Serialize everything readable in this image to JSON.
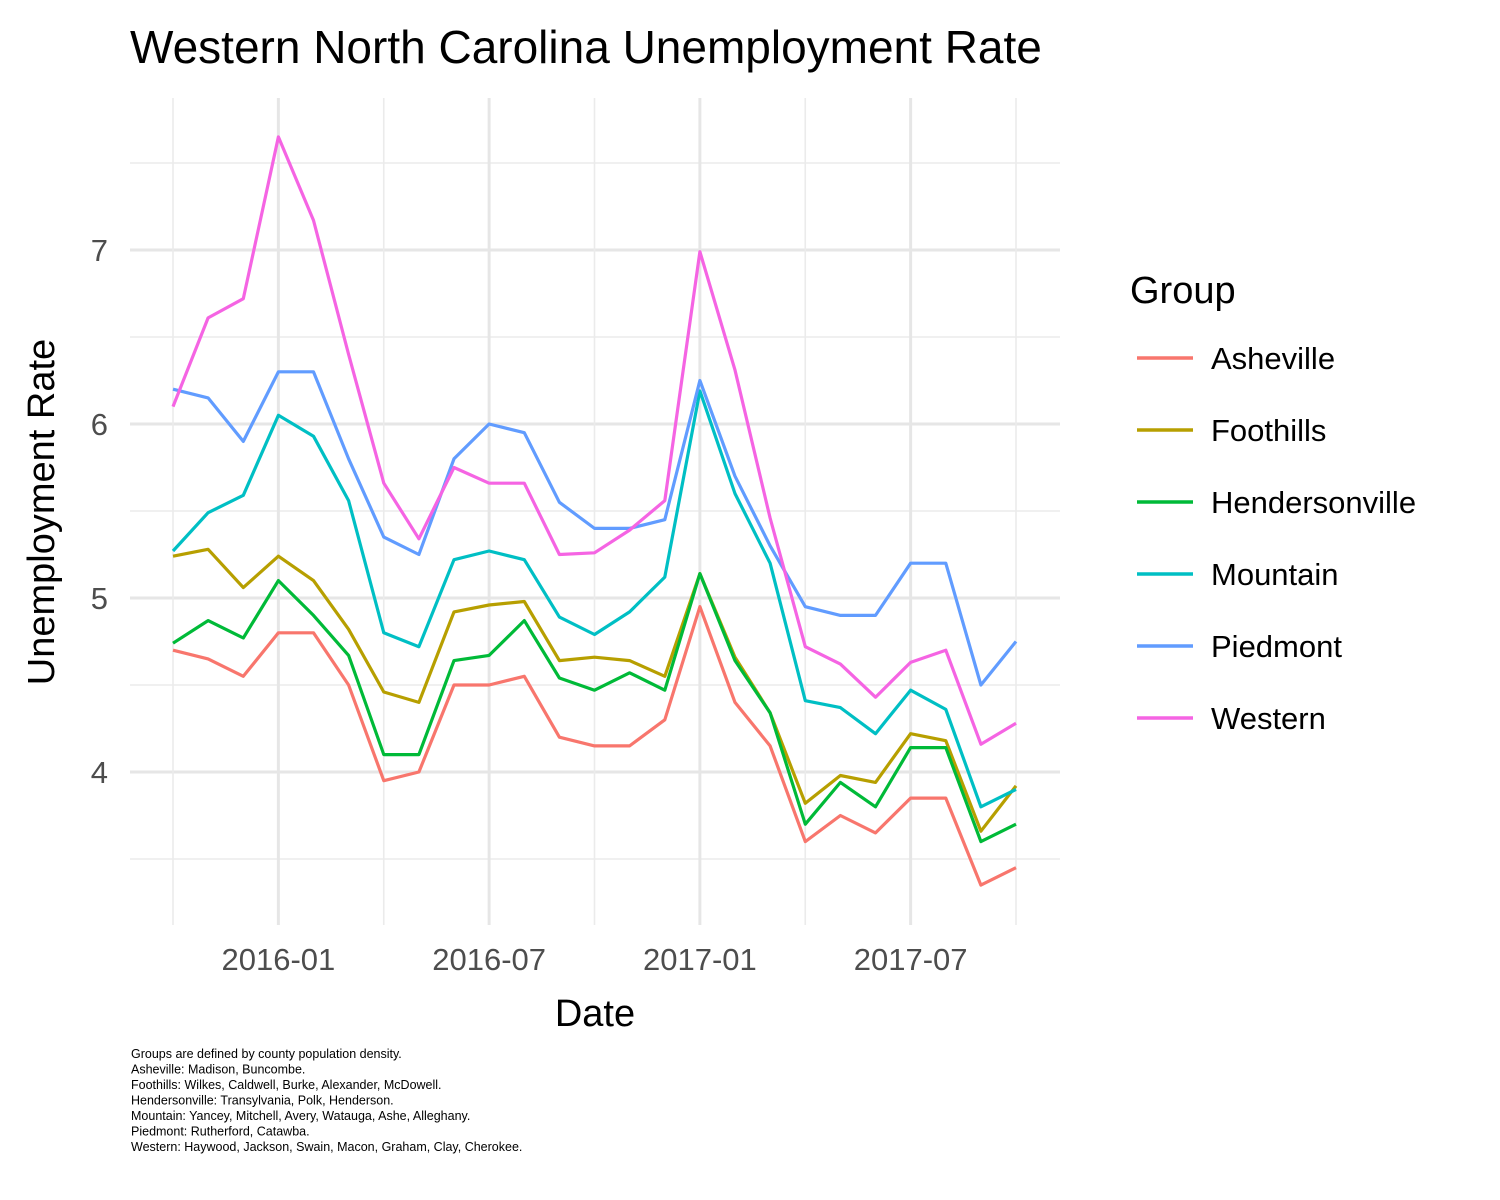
{
  "chart_data": {
    "type": "line",
    "title": "Western North Carolina Unemployment Rate",
    "xlabel": "Date",
    "ylabel": "Unemployment Rate",
    "x": [
      "2015-10",
      "2015-11",
      "2015-12",
      "2016-01",
      "2016-02",
      "2016-03",
      "2016-04",
      "2016-05",
      "2016-06",
      "2016-07",
      "2016-08",
      "2016-09",
      "2016-10",
      "2016-11",
      "2016-12",
      "2017-01",
      "2017-02",
      "2017-03",
      "2017-04",
      "2017-05",
      "2017-06",
      "2017-07",
      "2017-08",
      "2017-09",
      "2017-10"
    ],
    "x_ticks": [
      "2016-01",
      "2016-07",
      "2017-01",
      "2017-07"
    ],
    "y_ticks": [
      4,
      5,
      6,
      7
    ],
    "ylim": [
      3.15,
      7.88
    ],
    "grid": true,
    "legend": {
      "title": "Group",
      "position": "right"
    },
    "series": [
      {
        "name": "Asheville",
        "color": "#F8766D",
        "values": [
          4.7,
          4.65,
          4.55,
          4.8,
          4.8,
          4.5,
          3.95,
          4.0,
          4.5,
          4.5,
          4.55,
          4.2,
          4.15,
          4.15,
          4.3,
          4.95,
          4.4,
          4.15,
          3.6,
          3.75,
          3.65,
          3.85,
          3.85,
          3.35,
          3.45
        ]
      },
      {
        "name": "Foothills",
        "color": "#B79F00",
        "values": [
          5.24,
          5.28,
          5.06,
          5.24,
          5.1,
          4.82,
          4.46,
          4.4,
          4.92,
          4.96,
          4.98,
          4.64,
          4.66,
          4.64,
          4.55,
          5.14,
          4.66,
          4.34,
          3.82,
          3.98,
          3.94,
          4.22,
          4.18,
          3.66,
          3.92
        ]
      },
      {
        "name": "Hendersonville",
        "color": "#00BA38",
        "values": [
          4.74,
          4.87,
          4.77,
          5.1,
          4.9,
          4.67,
          4.1,
          4.1,
          4.64,
          4.67,
          4.87,
          4.54,
          4.47,
          4.57,
          4.47,
          5.14,
          4.64,
          4.34,
          3.7,
          3.94,
          3.8,
          4.14,
          4.14,
          3.6,
          3.7
        ]
      },
      {
        "name": "Mountain",
        "color": "#00BFC4",
        "values": [
          5.27,
          5.49,
          5.59,
          6.05,
          5.93,
          5.56,
          4.8,
          4.72,
          5.22,
          5.27,
          5.22,
          4.89,
          4.79,
          4.92,
          5.12,
          6.19,
          5.6,
          5.2,
          4.41,
          4.37,
          4.22,
          4.47,
          4.36,
          3.8,
          3.9
        ]
      },
      {
        "name": "Piedmont",
        "color": "#619CFF",
        "values": [
          6.2,
          6.15,
          5.9,
          6.3,
          6.3,
          5.8,
          5.35,
          5.25,
          5.8,
          6.0,
          5.95,
          5.55,
          5.4,
          5.4,
          5.45,
          6.25,
          5.7,
          5.3,
          4.95,
          4.9,
          4.9,
          5.2,
          5.2,
          4.5,
          4.75
        ]
      },
      {
        "name": "Western",
        "color": "#F564E3",
        "values": [
          6.1,
          6.61,
          6.72,
          7.65,
          7.17,
          6.4,
          5.66,
          5.34,
          5.75,
          5.66,
          5.66,
          5.25,
          5.26,
          5.39,
          5.56,
          6.99,
          6.31,
          5.46,
          4.72,
          4.62,
          4.43,
          4.63,
          4.7,
          4.16,
          4.28
        ]
      }
    ]
  },
  "caption_lines": [
    "Groups are defined by county population density.",
    "Asheville: Madison, Buncombe.",
    "Foothills: Wilkes, Caldwell, Burke, Alexander, McDowell.",
    "Hendersonville: Transylvania, Polk, Henderson.",
    "Mountain: Yancey, Mitchell, Avery, Watauga, Ashe, Alleghany.",
    "Piedmont: Rutherford, Catawba.",
    "Western: Haywood, Jackson, Swain, Macon, Graham, Clay, Cherokee."
  ]
}
